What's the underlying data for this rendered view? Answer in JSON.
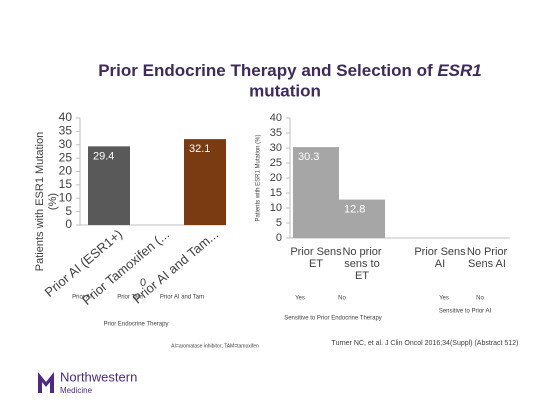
{
  "title": [
    "Prior Endocrine Therapy and Selection of ",
    "ESR1",
    "mutation"
  ],
  "chart_data": [
    {
      "type": "bar",
      "ylabel": [
        "Patients with ESR1 Mutation",
        "(%)"
      ],
      "categories": [
        "Prior AI (ESR1+)",
        "Prior Tamoxifen (...",
        "Prior AI and Tam..."
      ],
      "values": [
        29.4,
        0,
        32.1
      ],
      "colors": [
        "#595959",
        "#8c8c8c",
        "#7a3b12"
      ],
      "ylim": [
        0,
        40
      ],
      "yticks": [
        0,
        5,
        10,
        15,
        20,
        25,
        30,
        35,
        40
      ],
      "annotations": [
        "Prior AI",
        "Prior Tam",
        "Prior AI and Tam",
        "Prior Endocrine Therapy"
      ]
    },
    {
      "type": "bar",
      "ylabel": [
        "Patients with ESR1 Mutation (%)"
      ],
      "categories": [
        "Prior Sens ET",
        "No prior sens to ET",
        "Prior Sens AI",
        "No Prior Sens AI"
      ],
      "values": [
        30.3,
        12.8,
        null,
        null
      ],
      "colors": [
        "#a6a6a6",
        "#a6a6a6",
        "#a6a6a6",
        "#a6a6a6"
      ],
      "ylim": [
        0,
        40
      ],
      "yticks": [
        0,
        5,
        10,
        15,
        20,
        25,
        30,
        35,
        40
      ],
      "annotations": [
        "Yes",
        "No",
        "Sensitive to Prior Endocrine Therapy",
        "Yes",
        "No",
        "Sensitive to Prior AI"
      ]
    }
  ],
  "footnote": "AI=aromatase inhibitor; TAM=tamoxifen",
  "citation": "Turner NC, et al. J Clin Oncol 2016;34(Suppl) (Abstract 512)",
  "logo": [
    "Northwestern",
    "Medicine"
  ]
}
